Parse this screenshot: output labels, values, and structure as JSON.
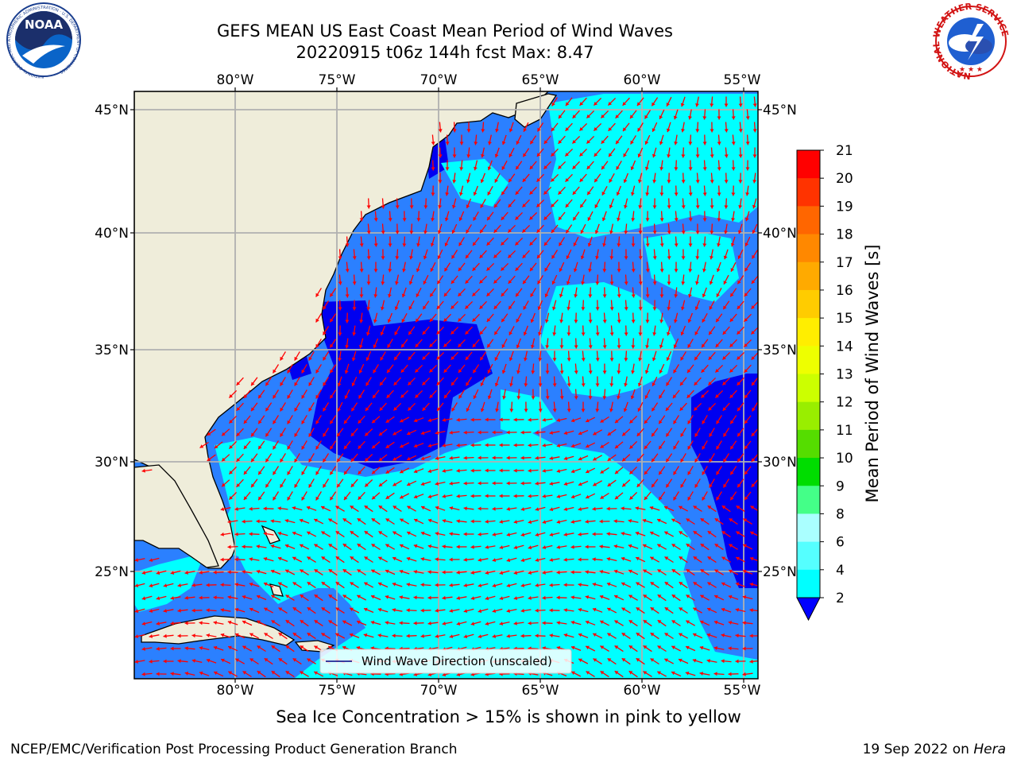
{
  "title": {
    "line1": "GEFS MEAN US East Coast Mean Period of Wind Waves",
    "line2": "20220915 t06z 144h fcst   Max: 8.47"
  },
  "map": {
    "lon_range": [
      -85,
      -54
    ],
    "lat_range": [
      20.5,
      46
    ],
    "lon_ticks": [
      "80°W",
      "75°W",
      "70°W",
      "65°W",
      "60°W",
      "55°W"
    ],
    "lat_ticks": [
      "45°N",
      "40°N",
      "35°N",
      "30°N",
      "25°N"
    ],
    "legend_label": "Wind Wave Direction (unscaled)",
    "land_color": "#efedda",
    "arrow_color": "#ff0000",
    "grid": true
  },
  "colorbar": {
    "label": "Mean Period of Wind Waves [s]",
    "levels": [
      "21",
      "20",
      "19",
      "18",
      "17",
      "16",
      "15",
      "14",
      "13",
      "12",
      "11",
      "10",
      "9",
      "8",
      "6",
      "4",
      "2"
    ],
    "colors": [
      "#ff0000",
      "#ff3300",
      "#ff6600",
      "#ff8800",
      "#ffaa00",
      "#ffcc00",
      "#ffee00",
      "#eeff00",
      "#ccff00",
      "#99ee00",
      "#55dd00",
      "#00dd00",
      "#44ff88",
      "#aaffff",
      "#55ffff",
      "#00ffff",
      "#0099ff",
      "#0000ff"
    ]
  },
  "ice_note": "Sea Ice Concentration > 15% is shown in pink to yellow",
  "footer": {
    "left": "NCEP/EMC/Verification Post Processing Product Generation Branch",
    "right_prefix": "19 Sep 2022 on ",
    "right_host": "Hera"
  },
  "logos": {
    "noaa": "NOAA",
    "noaa_ring": "NATIONAL OCEANIC AND ATMOSPHERIC ADMINISTRATION · U.S. DEPARTMENT OF COMMERCE",
    "nws_ring": "NATIONAL WEATHER SERVICE"
  }
}
